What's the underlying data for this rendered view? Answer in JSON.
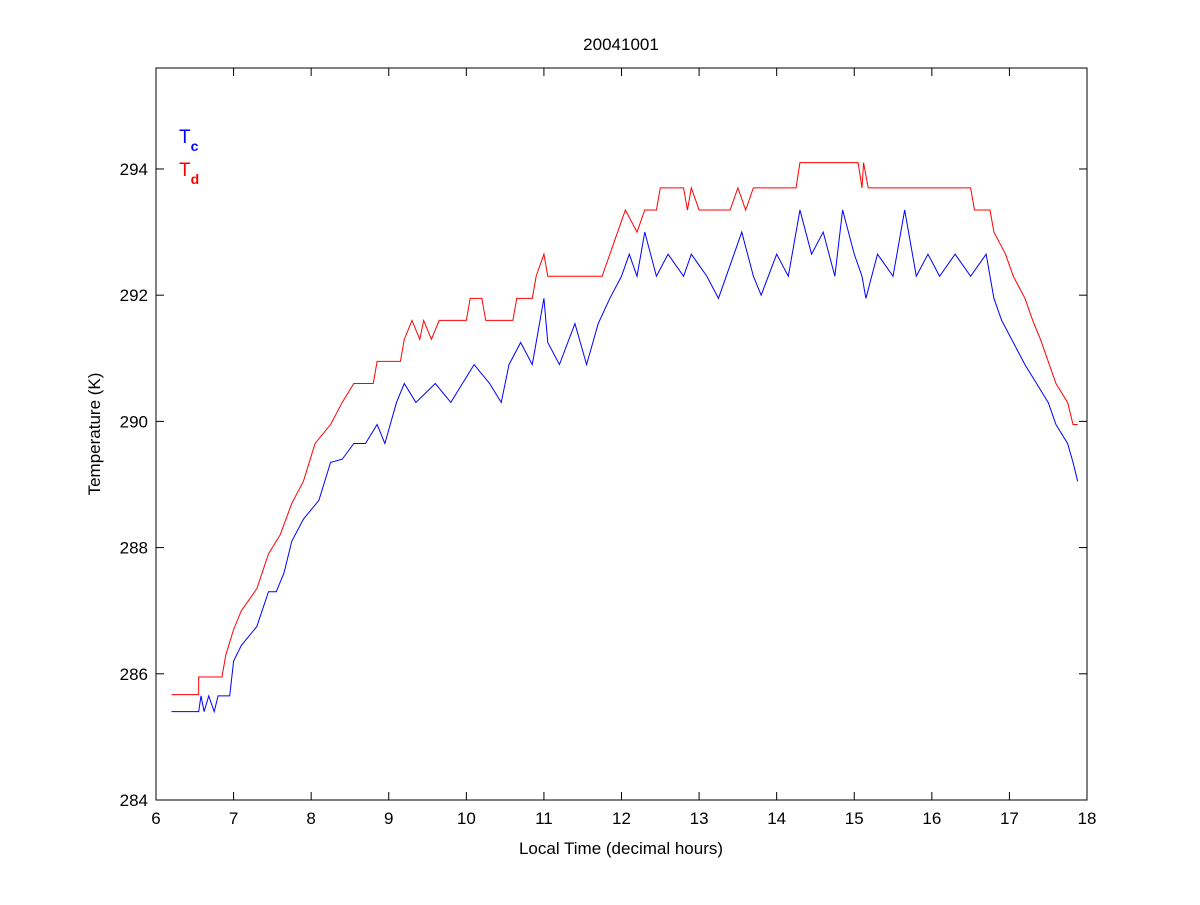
{
  "chart_data": {
    "type": "line",
    "title": "20041001",
    "xlabel": "Local Time (decimal hours)",
    "ylabel": "Temperature (K)",
    "xlim": [
      6,
      18
    ],
    "ylim": [
      284,
      295.6
    ],
    "xticks": [
      6,
      7,
      8,
      9,
      10,
      11,
      12,
      13,
      14,
      15,
      16,
      17,
      18
    ],
    "yticks": [
      284,
      286,
      288,
      290,
      292,
      294
    ],
    "grid": false,
    "legend_placement": "top-left",
    "series": [
      {
        "name": "T",
        "sub": "c",
        "color": "#0000ff",
        "points": [
          [
            6.2,
            285.4
          ],
          [
            6.55,
            285.4
          ],
          [
            6.58,
            285.65
          ],
          [
            6.62,
            285.4
          ],
          [
            6.68,
            285.65
          ],
          [
            6.75,
            285.4
          ],
          [
            6.8,
            285.65
          ],
          [
            6.95,
            285.65
          ],
          [
            7.0,
            286.2
          ],
          [
            7.1,
            286.45
          ],
          [
            7.3,
            286.75
          ],
          [
            7.45,
            287.3
          ],
          [
            7.55,
            287.3
          ],
          [
            7.65,
            287.6
          ],
          [
            7.75,
            288.1
          ],
          [
            7.9,
            288.45
          ],
          [
            8.1,
            288.75
          ],
          [
            8.25,
            289.35
          ],
          [
            8.4,
            289.4
          ],
          [
            8.55,
            289.65
          ],
          [
            8.7,
            289.65
          ],
          [
            8.85,
            289.95
          ],
          [
            8.95,
            289.65
          ],
          [
            9.1,
            290.3
          ],
          [
            9.2,
            290.6
          ],
          [
            9.35,
            290.3
          ],
          [
            9.6,
            290.6
          ],
          [
            9.8,
            290.3
          ],
          [
            9.95,
            290.6
          ],
          [
            10.1,
            290.9
          ],
          [
            10.3,
            290.6
          ],
          [
            10.45,
            290.3
          ],
          [
            10.55,
            290.9
          ],
          [
            10.7,
            291.25
          ],
          [
            10.85,
            290.9
          ],
          [
            11.0,
            291.95
          ],
          [
            11.05,
            291.25
          ],
          [
            11.2,
            290.9
          ],
          [
            11.4,
            291.55
          ],
          [
            11.55,
            290.9
          ],
          [
            11.7,
            291.55
          ],
          [
            11.85,
            291.95
          ],
          [
            12.0,
            292.3
          ],
          [
            12.1,
            292.65
          ],
          [
            12.2,
            292.3
          ],
          [
            12.3,
            293.0
          ],
          [
            12.45,
            292.3
          ],
          [
            12.6,
            292.65
          ],
          [
            12.8,
            292.3
          ],
          [
            12.9,
            292.65
          ],
          [
            13.1,
            292.3
          ],
          [
            13.25,
            291.95
          ],
          [
            13.45,
            292.65
          ],
          [
            13.55,
            293.0
          ],
          [
            13.7,
            292.3
          ],
          [
            13.8,
            292.0
          ],
          [
            14.0,
            292.65
          ],
          [
            14.15,
            292.3
          ],
          [
            14.3,
            293.35
          ],
          [
            14.45,
            292.65
          ],
          [
            14.6,
            293.0
          ],
          [
            14.75,
            292.3
          ],
          [
            14.85,
            293.35
          ],
          [
            15.0,
            292.65
          ],
          [
            15.1,
            292.3
          ],
          [
            15.15,
            291.95
          ],
          [
            15.3,
            292.65
          ],
          [
            15.5,
            292.3
          ],
          [
            15.65,
            293.35
          ],
          [
            15.8,
            292.3
          ],
          [
            15.95,
            292.65
          ],
          [
            16.1,
            292.3
          ],
          [
            16.3,
            292.65
          ],
          [
            16.5,
            292.3
          ],
          [
            16.7,
            292.65
          ],
          [
            16.8,
            291.95
          ],
          [
            16.9,
            291.6
          ],
          [
            17.05,
            291.25
          ],
          [
            17.2,
            290.9
          ],
          [
            17.35,
            290.6
          ],
          [
            17.5,
            290.3
          ],
          [
            17.6,
            289.95
          ],
          [
            17.75,
            289.65
          ],
          [
            17.82,
            289.35
          ],
          [
            17.88,
            289.05
          ]
        ]
      },
      {
        "name": "T",
        "sub": "d",
        "color": "#ff0000",
        "points": [
          [
            6.2,
            285.67
          ],
          [
            6.55,
            285.67
          ],
          [
            6.55,
            285.95
          ],
          [
            6.85,
            285.95
          ],
          [
            6.9,
            286.3
          ],
          [
            7.0,
            286.7
          ],
          [
            7.1,
            287.0
          ],
          [
            7.3,
            287.35
          ],
          [
            7.45,
            287.9
          ],
          [
            7.6,
            288.2
          ],
          [
            7.75,
            288.7
          ],
          [
            7.9,
            289.05
          ],
          [
            8.05,
            289.65
          ],
          [
            8.25,
            289.95
          ],
          [
            8.4,
            290.3
          ],
          [
            8.55,
            290.6
          ],
          [
            8.8,
            290.6
          ],
          [
            8.85,
            290.95
          ],
          [
            9.15,
            290.95
          ],
          [
            9.2,
            291.3
          ],
          [
            9.3,
            291.6
          ],
          [
            9.4,
            291.3
          ],
          [
            9.45,
            291.6
          ],
          [
            9.55,
            291.3
          ],
          [
            9.65,
            291.6
          ],
          [
            10.0,
            291.6
          ],
          [
            10.05,
            291.95
          ],
          [
            10.2,
            291.95
          ],
          [
            10.25,
            291.6
          ],
          [
            10.6,
            291.6
          ],
          [
            10.65,
            291.95
          ],
          [
            10.85,
            291.95
          ],
          [
            10.9,
            292.3
          ],
          [
            11.0,
            292.65
          ],
          [
            11.05,
            292.3
          ],
          [
            11.75,
            292.3
          ],
          [
            11.85,
            292.65
          ],
          [
            11.95,
            293.0
          ],
          [
            12.05,
            293.35
          ],
          [
            12.2,
            293.0
          ],
          [
            12.3,
            293.35
          ],
          [
            12.45,
            293.35
          ],
          [
            12.5,
            293.7
          ],
          [
            12.8,
            293.7
          ],
          [
            12.85,
            293.35
          ],
          [
            12.9,
            293.7
          ],
          [
            13.0,
            293.35
          ],
          [
            13.4,
            293.35
          ],
          [
            13.5,
            293.7
          ],
          [
            13.6,
            293.35
          ],
          [
            13.7,
            293.7
          ],
          [
            14.25,
            293.7
          ],
          [
            14.3,
            294.1
          ],
          [
            15.05,
            294.1
          ],
          [
            15.1,
            293.7
          ],
          [
            15.12,
            294.1
          ],
          [
            15.18,
            293.7
          ],
          [
            16.5,
            293.7
          ],
          [
            16.55,
            293.35
          ],
          [
            16.75,
            293.35
          ],
          [
            16.8,
            293.0
          ],
          [
            16.95,
            292.65
          ],
          [
            17.05,
            292.3
          ],
          [
            17.2,
            291.95
          ],
          [
            17.3,
            291.6
          ],
          [
            17.4,
            291.3
          ],
          [
            17.5,
            290.95
          ],
          [
            17.6,
            290.6
          ],
          [
            17.75,
            290.3
          ],
          [
            17.82,
            289.95
          ],
          [
            17.88,
            289.95
          ]
        ]
      }
    ]
  }
}
